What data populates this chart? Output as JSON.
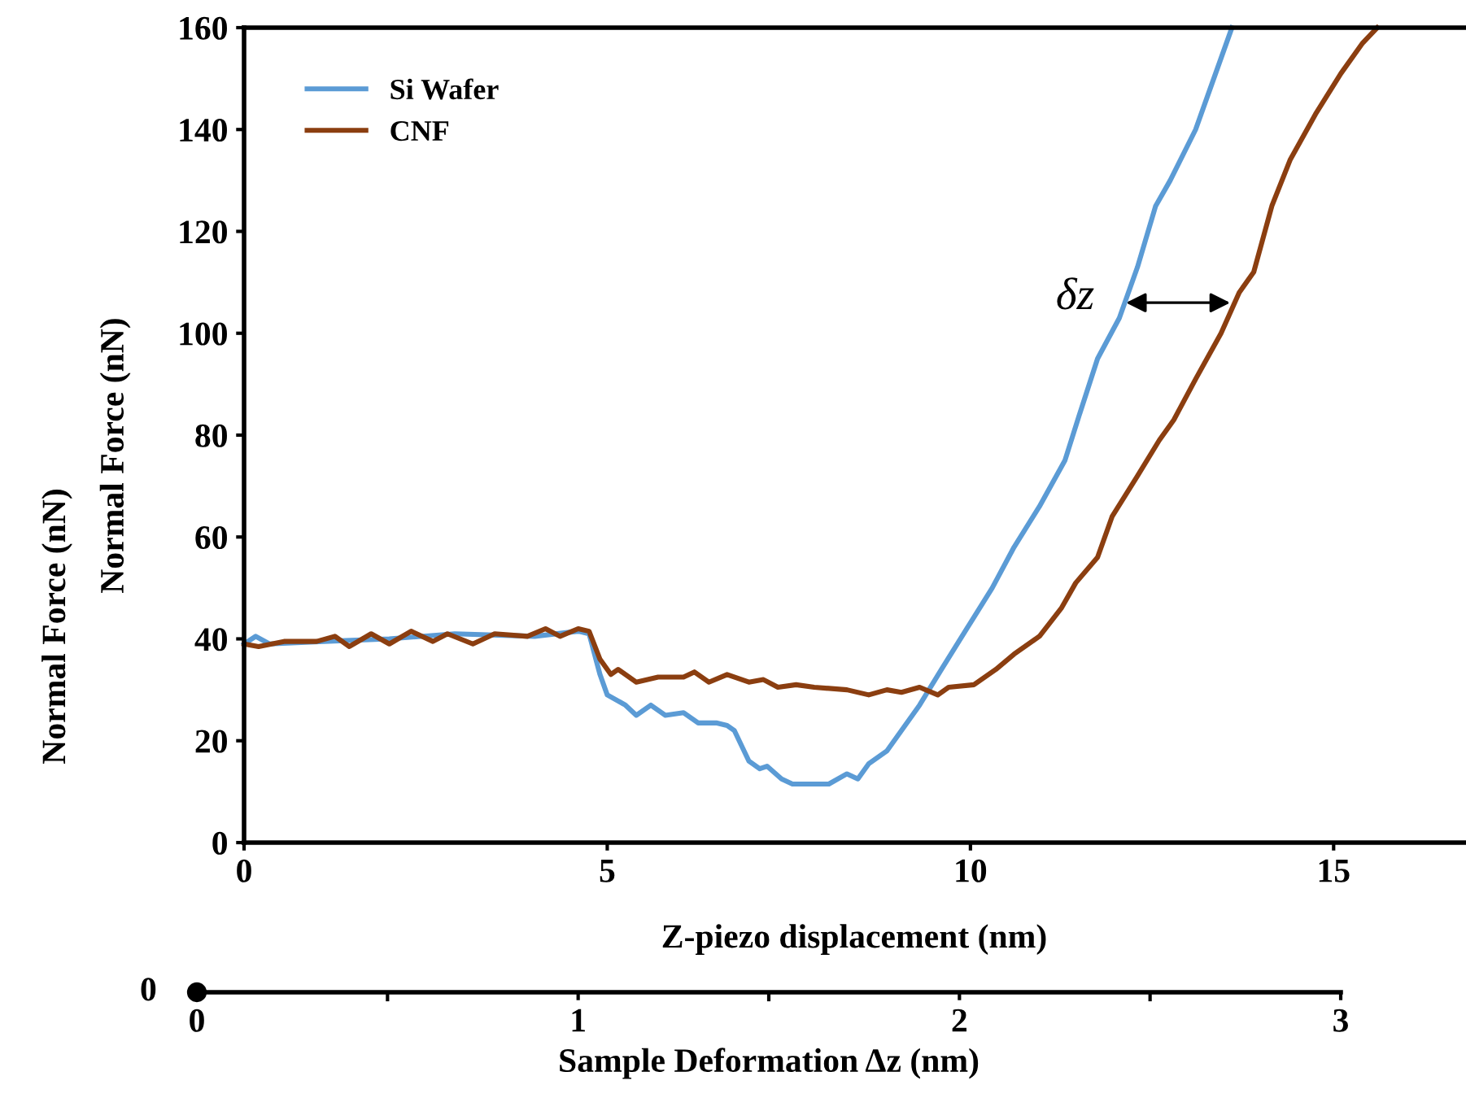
{
  "chart_data": {
    "type": "line",
    "xlabel": "Z-piezo displacement (nm)",
    "ylabel": "Normal Force (nN)",
    "xlim": [
      0,
      16.8
    ],
    "xticks": [
      0,
      5,
      10,
      15
    ],
    "ylim": [
      0,
      160
    ],
    "yticks": [
      0,
      20,
      40,
      60,
      80,
      100,
      120,
      140,
      160
    ],
    "x2label": "Sample Deformation Δz (nm)",
    "x2lim": [
      0,
      3
    ],
    "x2ticks": [
      0,
      1,
      2,
      3
    ],
    "legend": "top left",
    "marker": "none",
    "line_style": "solid",
    "annotations": [
      {
        "text": "δz",
        "x": 12.08,
        "y": 106
      },
      "0",
      "Normal Force (nN)"
    ],
    "series": [
      {
        "name": "Si Wafer",
        "color": "#5b9bd5",
        "x": [
          0,
          0.16,
          0.35,
          1.1,
          2,
          2.9,
          4.0,
          4.6,
          4.75,
          4.9,
          5.0,
          5.25,
          5.4,
          5.6,
          5.8,
          6.05,
          6.25,
          6.5,
          6.65,
          6.75,
          6.95,
          7.1,
          7.2,
          7.4,
          7.55,
          8.05,
          8.3,
          8.45,
          8.6,
          8.85,
          9.05,
          9.3,
          9.6,
          9.95,
          10.3,
          10.6,
          10.95,
          11.3,
          11.5,
          11.75,
          12.05,
          12.3,
          12.55,
          12.75,
          13.1,
          13.3,
          13.6
        ],
        "values": [
          39,
          40.5,
          39,
          39.5,
          40,
          41,
          40.5,
          41.5,
          41,
          33,
          29,
          27,
          25,
          27,
          25,
          25.5,
          23.5,
          23.5,
          23,
          22,
          16,
          14.5,
          15,
          12.5,
          11.5,
          11.5,
          13.5,
          12.5,
          15.5,
          18,
          22,
          27,
          34,
          42,
          50,
          58,
          66,
          75,
          84,
          95,
          103,
          113,
          125,
          130,
          140,
          148,
          160
        ]
      },
      {
        "name": "CNF",
        "color": "#8b3e10",
        "x": [
          0,
          0.2,
          0.55,
          1.0,
          1.25,
          1.45,
          1.75,
          2.0,
          2.3,
          2.6,
          2.8,
          3.15,
          3.45,
          3.9,
          4.15,
          4.35,
          4.6,
          4.75,
          4.9,
          5.05,
          5.15,
          5.4,
          5.7,
          6.05,
          6.2,
          6.4,
          6.65,
          6.95,
          7.15,
          7.35,
          7.6,
          7.85,
          8.3,
          8.6,
          8.85,
          9.05,
          9.3,
          9.55,
          9.7,
          10.05,
          10.35,
          10.6,
          10.95,
          11.25,
          11.45,
          11.75,
          11.95,
          12.3,
          12.6,
          12.8,
          13.1,
          13.45,
          13.7,
          13.9,
          14.15,
          14.4,
          14.75,
          15.1,
          15.4,
          15.6
        ],
        "values": [
          39,
          38.5,
          39.5,
          39.5,
          40.5,
          38.5,
          41,
          39,
          41.5,
          39.5,
          41,
          39,
          41,
          40.5,
          42,
          40.5,
          42,
          41.5,
          36,
          33,
          34,
          31.5,
          32.5,
          32.5,
          33.5,
          31.5,
          33,
          31.5,
          32,
          30.5,
          31,
          30.5,
          30,
          29,
          30,
          29.5,
          30.5,
          29,
          30.5,
          31,
          34,
          37,
          40.5,
          46,
          51,
          56,
          64,
          72,
          79,
          83,
          91,
          100,
          108,
          112,
          125,
          134,
          143,
          151,
          157,
          160
        ]
      }
    ]
  }
}
